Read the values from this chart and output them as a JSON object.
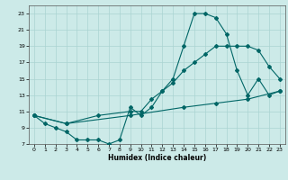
{
  "xlabel": "Humidex (Indice chaleur)",
  "bg_color": "#cceae8",
  "grid_color": "#aad4d2",
  "line_color": "#006666",
  "xlim": [
    -0.5,
    23.5
  ],
  "ylim": [
    7,
    24
  ],
  "xticks": [
    0,
    1,
    2,
    3,
    4,
    5,
    6,
    7,
    8,
    9,
    10,
    11,
    12,
    13,
    14,
    15,
    16,
    17,
    18,
    19,
    20,
    21,
    22,
    23
  ],
  "yticks": [
    7,
    9,
    11,
    13,
    15,
    17,
    19,
    21,
    23
  ],
  "curve1_x": [
    0,
    1,
    2,
    3,
    4,
    5,
    6,
    7,
    8,
    9,
    10,
    11,
    12,
    13,
    14,
    15,
    16,
    17,
    18,
    19,
    20,
    21,
    22,
    23
  ],
  "curve1_y": [
    10.5,
    9.5,
    9.0,
    8.5,
    7.5,
    7.5,
    7.5,
    7.0,
    7.5,
    11.5,
    10.5,
    11.5,
    13.5,
    15.0,
    19.0,
    23.0,
    23.0,
    22.5,
    20.5,
    16.0,
    13.0,
    15.0,
    13.0,
    13.5
  ],
  "curve2_x": [
    0,
    3,
    6,
    9,
    10,
    11,
    12,
    13,
    14,
    15,
    16,
    17,
    18,
    19,
    20,
    21,
    22,
    23
  ],
  "curve2_y": [
    10.5,
    9.5,
    10.5,
    11.0,
    11.0,
    12.5,
    13.5,
    14.5,
    16.0,
    17.0,
    18.0,
    19.0,
    19.0,
    19.0,
    19.0,
    18.5,
    16.5,
    15.0
  ],
  "curve3_x": [
    0,
    3,
    9,
    14,
    17,
    20,
    23
  ],
  "curve3_y": [
    10.5,
    9.5,
    10.5,
    11.5,
    12.0,
    12.5,
    13.5
  ]
}
